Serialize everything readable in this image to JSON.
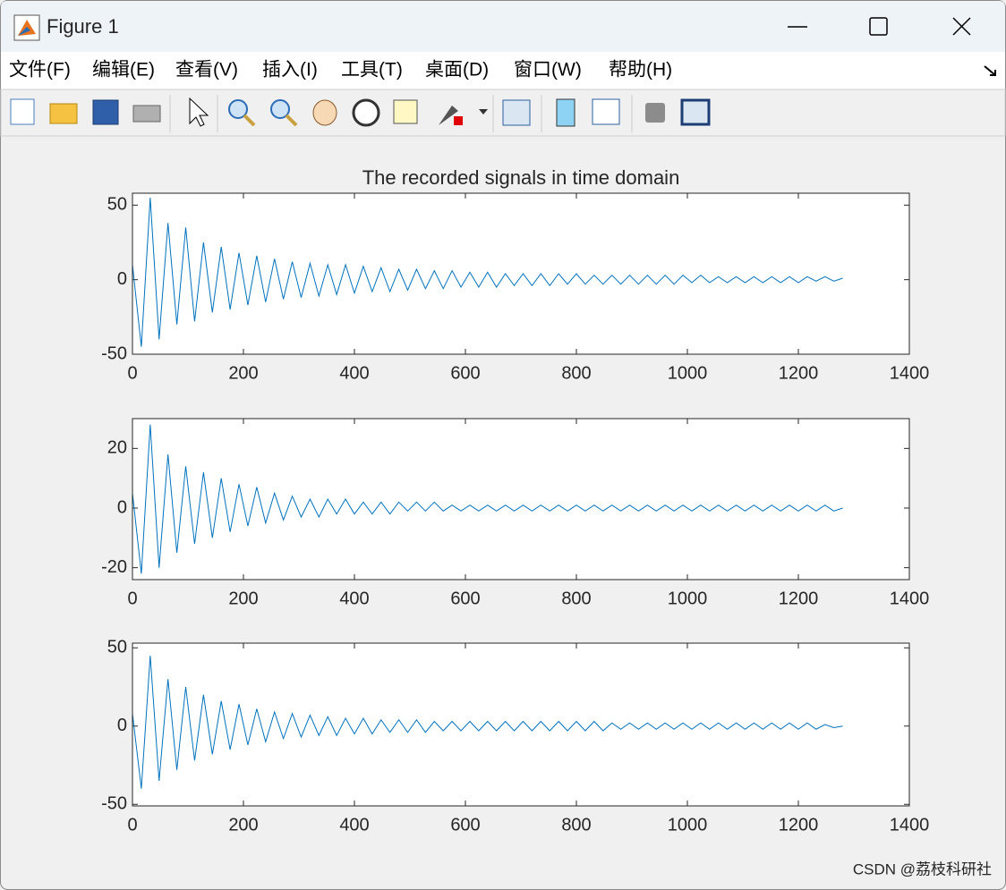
{
  "window": {
    "title": "Figure 1",
    "menu": [
      "文件(F)",
      "编辑(E)",
      "查看(V)",
      "插入(I)",
      "工具(T)",
      "桌面(D)",
      "窗口(W)",
      "帮助(H)"
    ]
  },
  "chart_data": [
    {
      "type": "line",
      "title": "The recorded signals in time domain",
      "color": "#0072bd",
      "x": [
        0,
        16,
        32,
        48,
        64,
        80,
        96,
        112,
        128,
        144,
        160,
        176,
        192,
        208,
        224,
        240,
        256,
        272,
        288,
        304,
        320,
        336,
        352,
        368,
        384,
        400,
        416,
        432,
        448,
        464,
        480,
        496,
        512,
        528,
        544,
        560,
        576,
        592,
        608,
        624,
        640,
        656,
        672,
        688,
        704,
        720,
        736,
        752,
        768,
        784,
        800,
        816,
        832,
        848,
        864,
        880,
        896,
        912,
        928,
        944,
        960,
        976,
        992,
        1008,
        1024,
        1040,
        1056,
        1072,
        1088,
        1104,
        1120,
        1136,
        1152,
        1168,
        1184,
        1200,
        1216,
        1232,
        1248,
        1264,
        1280
      ],
      "values": [
        10,
        -45,
        55,
        -40,
        38,
        -30,
        35,
        -28,
        25,
        -22,
        22,
        -20,
        18,
        -17,
        16,
        -15,
        14,
        -13,
        12,
        -12,
        11,
        -11,
        10,
        -10,
        10,
        -9,
        9,
        -8,
        8,
        -8,
        7,
        -7,
        7,
        -6,
        6,
        -6,
        6,
        -5,
        5,
        -5,
        5,
        -5,
        4,
        -4,
        4,
        -4,
        4,
        -4,
        4,
        -3,
        4,
        -3,
        3,
        -3,
        3,
        -3,
        3,
        -3,
        3,
        -3,
        3,
        -3,
        3,
        -2,
        3,
        -2,
        2,
        -2,
        2,
        -2,
        2,
        -2,
        2,
        -2,
        2,
        -2,
        2,
        -1,
        2,
        -1,
        1
      ],
      "xlim": [
        0,
        1400
      ],
      "xticks": [
        0,
        200,
        400,
        600,
        800,
        1000,
        1200,
        1400
      ],
      "ylim": [
        -50,
        58
      ],
      "yticks": [
        -50,
        0,
        50
      ]
    },
    {
      "type": "line",
      "color": "#0072bd",
      "x": [
        0,
        16,
        32,
        48,
        64,
        80,
        96,
        112,
        128,
        144,
        160,
        176,
        192,
        208,
        224,
        240,
        256,
        272,
        288,
        304,
        320,
        336,
        352,
        368,
        384,
        400,
        416,
        432,
        448,
        464,
        480,
        496,
        512,
        528,
        544,
        560,
        576,
        592,
        608,
        624,
        640,
        656,
        672,
        688,
        704,
        720,
        736,
        752,
        768,
        784,
        800,
        816,
        832,
        848,
        864,
        880,
        896,
        912,
        928,
        944,
        960,
        976,
        992,
        1008,
        1024,
        1040,
        1056,
        1072,
        1088,
        1104,
        1120,
        1136,
        1152,
        1168,
        1184,
        1200,
        1216,
        1232,
        1248,
        1264,
        1280
      ],
      "values": [
        5,
        -22,
        28,
        -20,
        18,
        -15,
        14,
        -12,
        12,
        -10,
        10,
        -8,
        8,
        -6,
        7,
        -5,
        5,
        -4,
        4,
        -3,
        3,
        -3,
        3,
        -2,
        3,
        -2,
        2,
        -2,
        2,
        -2,
        2,
        -1,
        2,
        -1,
        2,
        -1,
        1,
        -1,
        1,
        -1,
        1,
        -1,
        1,
        -1,
        1,
        -1,
        1,
        -1,
        1,
        -1,
        1,
        -1,
        1,
        -1,
        1,
        -1,
        1,
        -1,
        1,
        -1,
        1,
        -1,
        1,
        -1,
        1,
        -1,
        1,
        -1,
        1,
        -1,
        1,
        -1,
        1,
        -1,
        1,
        -1,
        1,
        -1,
        1,
        -1,
        0
      ],
      "xlim": [
        0,
        1400
      ],
      "xticks": [
        0,
        200,
        400,
        600,
        800,
        1000,
        1200,
        1400
      ],
      "ylim": [
        -24,
        30
      ],
      "yticks": [
        -20,
        0,
        20
      ]
    },
    {
      "type": "line",
      "color": "#0072bd",
      "x": [
        0,
        16,
        32,
        48,
        64,
        80,
        96,
        112,
        128,
        144,
        160,
        176,
        192,
        208,
        224,
        240,
        256,
        272,
        288,
        304,
        320,
        336,
        352,
        368,
        384,
        400,
        416,
        432,
        448,
        464,
        480,
        496,
        512,
        528,
        544,
        560,
        576,
        592,
        608,
        624,
        640,
        656,
        672,
        688,
        704,
        720,
        736,
        752,
        768,
        784,
        800,
        816,
        832,
        848,
        864,
        880,
        896,
        912,
        928,
        944,
        960,
        976,
        992,
        1008,
        1024,
        1040,
        1056,
        1072,
        1088,
        1104,
        1120,
        1136,
        1152,
        1168,
        1184,
        1200,
        1216,
        1232,
        1248,
        1264,
        1280
      ],
      "values": [
        8,
        -40,
        45,
        -35,
        30,
        -28,
        25,
        -22,
        20,
        -18,
        16,
        -15,
        14,
        -12,
        11,
        -10,
        9,
        -8,
        8,
        -7,
        7,
        -6,
        6,
        -6,
        5,
        -5,
        5,
        -5,
        4,
        -4,
        4,
        -4,
        4,
        -4,
        3,
        -3,
        3,
        -3,
        3,
        -3,
        3,
        -3,
        3,
        -3,
        3,
        -3,
        3,
        -3,
        3,
        -3,
        3,
        -3,
        3,
        -3,
        2,
        -2,
        2,
        -2,
        2,
        -2,
        2,
        -2,
        2,
        -2,
        2,
        -2,
        2,
        -2,
        2,
        -2,
        2,
        -2,
        2,
        -2,
        2,
        -2,
        2,
        -2,
        1,
        -1,
        0
      ],
      "xlim": [
        0,
        1400
      ],
      "xticks": [
        0,
        200,
        400,
        600,
        800,
        1000,
        1200,
        1400
      ],
      "ylim": [
        -51,
        53
      ],
      "yticks": [
        -50,
        0,
        50
      ]
    }
  ],
  "watermark": "CSDN @荔枝科研社"
}
